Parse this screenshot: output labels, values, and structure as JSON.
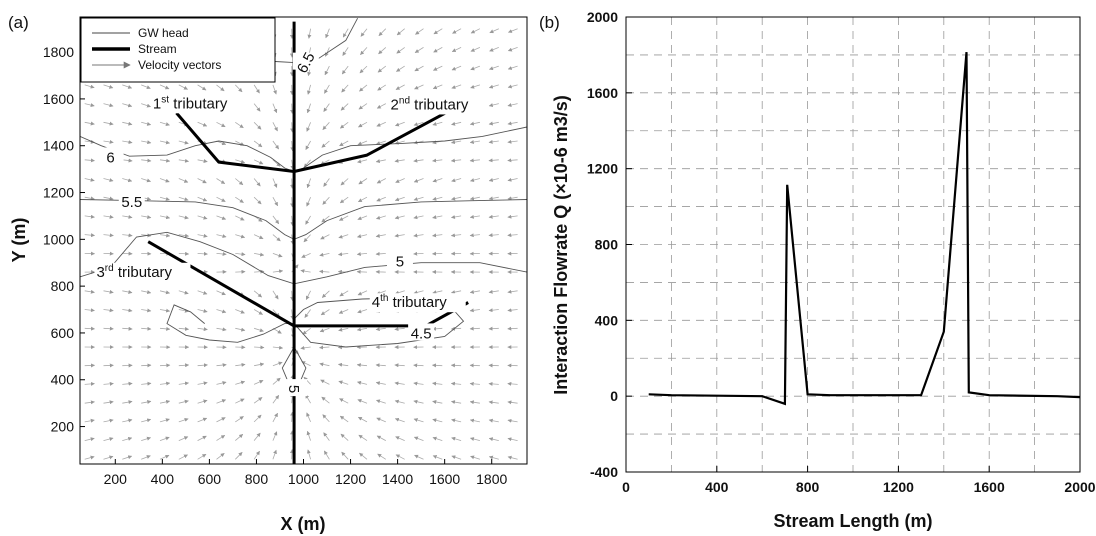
{
  "chart_data": [
    {
      "panel_label": "(a)",
      "type": "contour",
      "xlabel": "X (m)",
      "ylabel": "Y (m)",
      "xlim": [
        50,
        1950
      ],
      "ylim": [
        40,
        1950
      ],
      "xticks": [
        200,
        400,
        600,
        800,
        1000,
        1200,
        1400,
        1600,
        1800
      ],
      "yticks": [
        200,
        400,
        600,
        800,
        1000,
        1200,
        1400,
        1600,
        1800
      ],
      "legend": {
        "position": "top-left",
        "entries": [
          {
            "label": "GW head",
            "style": "thin-line"
          },
          {
            "label": "Stream",
            "style": "thick-line"
          },
          {
            "label": "Velocity vectors",
            "style": "arrow"
          }
        ]
      },
      "stream_main": [
        [
          960,
          1930
        ],
        [
          960,
          40
        ]
      ],
      "tributaries": [
        {
          "base": "1",
          "sup": "st",
          "text": " tributary",
          "label_at": [
            360,
            1560
          ],
          "points": [
            [
              460,
              1540
            ],
            [
              640,
              1330
            ],
            [
              960,
              1290
            ]
          ]
        },
        {
          "base": "2",
          "sup": "nd",
          "text": " tributary",
          "label_at": [
            1370,
            1555
          ],
          "points": [
            [
              960,
              1290
            ],
            [
              1270,
              1360
            ],
            [
              1640,
              1560
            ]
          ]
        },
        {
          "base": "3",
          "sup": "rd",
          "text": " tributary",
          "label_at": [
            120,
            840
          ],
          "points": [
            [
              340,
              990
            ],
            [
              960,
              630
            ]
          ]
        },
        {
          "base": "4",
          "sup": "th",
          "text": " tributary",
          "label_at": [
            1290,
            710
          ],
          "points": [
            [
              960,
              630
            ],
            [
              1520,
              630
            ],
            [
              1700,
              730
            ]
          ]
        }
      ],
      "contours": [
        {
          "level": "6.5",
          "label_at": [
            1010,
            1755
          ],
          "label_rotate": -62,
          "points": [
            [
              610,
              1940
            ],
            [
              660,
              1860
            ],
            [
              760,
              1790
            ],
            [
              880,
              1760
            ],
            [
              960,
              1755
            ],
            [
              1060,
              1770
            ],
            [
              1180,
              1850
            ],
            [
              1230,
              1945
            ]
          ]
        },
        {
          "level": "6",
          "label_at": [
            180,
            1350
          ],
          "label_rotate": 0,
          "points": [
            [
              50,
              1440
            ],
            [
              140,
              1400
            ],
            [
              260,
              1355
            ],
            [
              420,
              1360
            ],
            [
              540,
              1400
            ],
            [
              640,
              1420
            ],
            [
              760,
              1400
            ],
            [
              860,
              1350
            ],
            [
              920,
              1305
            ],
            [
              960,
              1290
            ],
            [
              1000,
              1305
            ],
            [
              1080,
              1360
            ],
            [
              1200,
              1400
            ],
            [
              1420,
              1410
            ],
            [
              1600,
              1420
            ],
            [
              1760,
              1440
            ],
            [
              1950,
              1480
            ]
          ]
        },
        {
          "level": "5.5",
          "label_at": [
            270,
            1160
          ],
          "label_rotate": 0,
          "points": [
            [
              50,
              1170
            ],
            [
              300,
              1165
            ],
            [
              540,
              1160
            ],
            [
              700,
              1135
            ],
            [
              840,
              1080
            ],
            [
              920,
              1020
            ],
            [
              960,
              1000
            ],
            [
              1010,
              1020
            ],
            [
              1100,
              1080
            ],
            [
              1260,
              1140
            ],
            [
              1500,
              1160
            ],
            [
              1720,
              1165
            ],
            [
              1950,
              1170
            ]
          ]
        },
        {
          "level": "5",
          "label_at": [
            1410,
            905
          ],
          "label_rotate": 0,
          "points": [
            [
              50,
              840
            ],
            [
              180,
              880
            ],
            [
              290,
              1010
            ],
            [
              420,
              1030
            ],
            [
              560,
              990
            ],
            [
              700,
              935
            ],
            [
              850,
              845
            ],
            [
              960,
              810
            ],
            [
              1100,
              840
            ],
            [
              1260,
              880
            ],
            [
              1500,
              900
            ],
            [
              1750,
              900
            ],
            [
              1950,
              860
            ]
          ]
        },
        {
          "level": "4.5",
          "label_at": [
            1500,
            598
          ],
          "label_rotate": 0,
          "points": [
            [
              580,
              640
            ],
            [
              520,
              690
            ],
            [
              450,
              720
            ],
            [
              420,
              640
            ],
            [
              500,
              590
            ],
            [
              600,
              570
            ],
            [
              720,
              560
            ],
            [
              830,
              595
            ],
            [
              920,
              640
            ],
            [
              960,
              640
            ],
            [
              1030,
              560
            ],
            [
              1180,
              540
            ],
            [
              1400,
              555
            ],
            [
              1600,
              585
            ],
            [
              1680,
              650
            ],
            [
              1610,
              730
            ],
            [
              1450,
              750
            ],
            [
              1250,
              745
            ],
            [
              1060,
              730
            ],
            [
              1000,
              700
            ],
            [
              960,
              660
            ]
          ]
        },
        {
          "level": "5",
          "label_at": [
            960,
            360
          ],
          "label_rotate": 90,
          "points": [
            [
              960,
              540
            ],
            [
              910,
              450
            ],
            [
              935,
              390
            ],
            [
              985,
              390
            ],
            [
              1010,
              450
            ],
            [
              960,
              540
            ]
          ]
        }
      ]
    },
    {
      "panel_label": "(b)",
      "type": "line",
      "xlabel": "Stream Length (m)",
      "ylabel": "Interaction Flowrate Q (×10-6 m3/s)",
      "xlim": [
        0,
        2000
      ],
      "ylim": [
        -400,
        2000
      ],
      "xticks": [
        0,
        400,
        800,
        1200,
        1600,
        2000
      ],
      "yticks": [
        -400,
        0,
        400,
        800,
        1200,
        1600,
        2000
      ],
      "grid": "dashed",
      "x": [
        100,
        200,
        600,
        700,
        710,
        800,
        900,
        1300,
        1400,
        1500,
        1510,
        1600,
        1900,
        2000
      ],
      "y": [
        10,
        5,
        0,
        -40,
        1115,
        10,
        5,
        5,
        340,
        1815,
        20,
        5,
        0,
        -5
      ]
    }
  ]
}
